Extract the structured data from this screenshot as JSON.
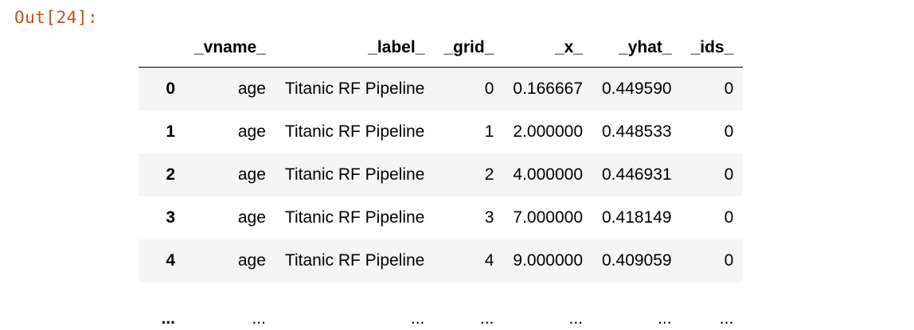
{
  "cell": {
    "prompt": "Out[24]:"
  },
  "dataframe": {
    "index_header": "",
    "columns": [
      "_vname_",
      "_label_",
      "_grid_",
      "_x_",
      "_yhat_",
      "_ids_"
    ],
    "rows": [
      {
        "index": "0",
        "cells": [
          "age",
          "Titanic RF Pipeline",
          "0",
          "0.166667",
          "0.449590",
          "0"
        ]
      },
      {
        "index": "1",
        "cells": [
          "age",
          "Titanic RF Pipeline",
          "1",
          "2.000000",
          "0.448533",
          "0"
        ]
      },
      {
        "index": "2",
        "cells": [
          "age",
          "Titanic RF Pipeline",
          "2",
          "4.000000",
          "0.446931",
          "0"
        ]
      },
      {
        "index": "3",
        "cells": [
          "age",
          "Titanic RF Pipeline",
          "3",
          "7.000000",
          "0.418149",
          "0"
        ]
      },
      {
        "index": "4",
        "cells": [
          "age",
          "Titanic RF Pipeline",
          "4",
          "9.000000",
          "0.409059",
          "0"
        ]
      }
    ],
    "ellipsis_row": {
      "index": "...",
      "cells": [
        "...",
        "...",
        "...",
        "...",
        "...",
        "..."
      ]
    }
  },
  "colors": {
    "prompt": "#c1531c",
    "stripe": "#f5f5f5"
  }
}
